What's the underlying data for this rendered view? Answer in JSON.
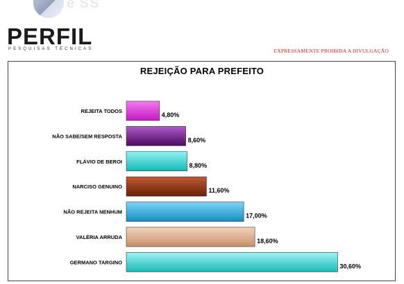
{
  "header": {
    "logo_ghost": "e SS",
    "logo_name": "PERFIL",
    "logo_tagline": "PESQUISAS TÉCNICAS",
    "notice": "EXPRESSAMENTE PROIBIDA A DIVULGAÇÃO"
  },
  "chart_data": {
    "type": "bar",
    "orientation": "horizontal",
    "title": "REJEIÇÃO PARA PREFEITO",
    "xlabel": "",
    "ylabel": "",
    "xlim": [
      0,
      35
    ],
    "grid": false,
    "legend": "none",
    "categories": [
      "REJEITA TODOS",
      "NÃO SABE/SEM RESPOSTA",
      "FLÁVIO DE BEROI",
      "NARCISO GENUINO",
      "NÃO REJEITA NENHUM",
      "VALÉRIA ARRUDA",
      "GERMANO TARGINO"
    ],
    "values": [
      4.8,
      8.6,
      8.8,
      11.6,
      17.0,
      18.6,
      30.6
    ],
    "value_labels": [
      "4,80%",
      "8,60%",
      "8,80%",
      "11,60%",
      "17,00%",
      "18,60%",
      "30,60%"
    ],
    "colors": [
      [
        "#f57af0",
        "#c21ac0"
      ],
      [
        "#b15ccc",
        "#4d0a61"
      ],
      [
        "#8ff4f2",
        "#14b8b8"
      ],
      [
        "#c25a34",
        "#6a2006"
      ],
      [
        "#7fd5f7",
        "#138ec3"
      ],
      [
        "#f2d3b9",
        "#c8906d"
      ],
      [
        "#9ff3f3",
        "#1cbaba"
      ]
    ]
  }
}
